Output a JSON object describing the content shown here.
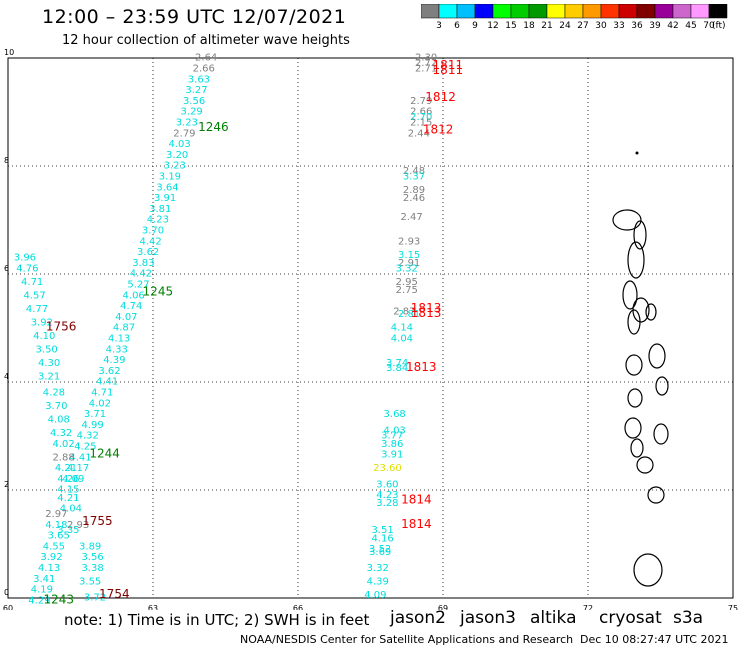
{
  "header": {
    "title": "12:00 – 23:59 UTC 12/07/2021",
    "subtitle": "12 hour collection of altimeter wave heights"
  },
  "colorbar": {
    "unit": "(ft)",
    "colors": [
      "#7f7f7f",
      "#00ffff",
      "#00bfff",
      "#0000ff",
      "#00ff00",
      "#00cc00",
      "#009900",
      "#ffff00",
      "#ffcc00",
      "#ff9900",
      "#ff3300",
      "#cc0000",
      "#800000",
      "#990099",
      "#cc66cc",
      "#ff99ff",
      "#000000"
    ],
    "ticks": [
      "3",
      "6",
      "9",
      "12",
      "15",
      "18",
      "21",
      "24",
      "27",
      "30",
      "33",
      "36",
      "39",
      "42",
      "45",
      "70"
    ]
  },
  "axes": {
    "x_ticks": [
      "60",
      "63",
      "66",
      "69",
      "72",
      "75"
    ],
    "y_ticks": [
      "0",
      "2",
      "4",
      "6",
      "8",
      "10"
    ],
    "lon_range": [
      60,
      75
    ],
    "lat_range": [
      0,
      10
    ]
  },
  "tracks": [
    {
      "name": "track-a",
      "color": "#00dddd",
      "labels": [
        {
          "text": "2.64",
          "lon": 64.1,
          "lat": 9.95,
          "c": "#808080"
        },
        {
          "text": "2.66",
          "lon": 64.05,
          "lat": 9.75,
          "c": "#808080"
        },
        {
          "text": "3.63",
          "lon": 63.95,
          "lat": 9.55
        },
        {
          "text": "3.27",
          "lon": 63.9,
          "lat": 9.35
        },
        {
          "text": "3.56",
          "lon": 63.85,
          "lat": 9.15
        },
        {
          "text": "3.29",
          "lon": 63.8,
          "lat": 8.95
        },
        {
          "text": "3.23",
          "lon": 63.7,
          "lat": 8.75
        },
        {
          "text": "2.79",
          "lon": 63.65,
          "lat": 8.55,
          "c": "#808080"
        },
        {
          "text": "4.03",
          "lon": 63.55,
          "lat": 8.35
        },
        {
          "text": "3.20",
          "lon": 63.5,
          "lat": 8.15
        },
        {
          "text": "3.23",
          "lon": 63.45,
          "lat": 7.95
        },
        {
          "text": "3.19",
          "lon": 63.35,
          "lat": 7.75
        },
        {
          "text": "3.64",
          "lon": 63.3,
          "lat": 7.55
        },
        {
          "text": "3.91",
          "lon": 63.25,
          "lat": 7.35
        },
        {
          "text": "3.81",
          "lon": 63.15,
          "lat": 7.15
        },
        {
          "text": "4.23",
          "lon": 63.1,
          "lat": 6.95
        },
        {
          "text": "3.70",
          "lon": 63.0,
          "lat": 6.75
        },
        {
          "text": "4.42",
          "lon": 62.95,
          "lat": 6.55
        },
        {
          "text": "3.62",
          "lon": 62.9,
          "lat": 6.35
        },
        {
          "text": "3.83",
          "lon": 62.8,
          "lat": 6.15
        },
        {
          "text": "4.42",
          "lon": 62.75,
          "lat": 5.95
        },
        {
          "text": "5.27",
          "lon": 62.7,
          "lat": 5.75
        },
        {
          "text": "4.06",
          "lon": 62.6,
          "lat": 5.55
        },
        {
          "text": "4.74",
          "lon": 62.55,
          "lat": 5.35
        },
        {
          "text": "4.07",
          "lon": 62.45,
          "lat": 5.15
        },
        {
          "text": "4.87",
          "lon": 62.4,
          "lat": 4.95
        },
        {
          "text": "4.13",
          "lon": 62.3,
          "lat": 4.75
        },
        {
          "text": "4.33",
          "lon": 62.25,
          "lat": 4.55
        },
        {
          "text": "4.39",
          "lon": 62.2,
          "lat": 4.35
        },
        {
          "text": "3.62",
          "lon": 62.1,
          "lat": 4.15
        },
        {
          "text": "4.41",
          "lon": 62.05,
          "lat": 3.95
        },
        {
          "text": "4.71",
          "lon": 61.95,
          "lat": 3.75
        },
        {
          "text": "4.02",
          "lon": 61.9,
          "lat": 3.55
        },
        {
          "text": "3.71",
          "lon": 61.8,
          "lat": 3.35
        },
        {
          "text": "4.99",
          "lon": 61.75,
          "lat": 3.15
        },
        {
          "text": "4.32",
          "lon": 61.65,
          "lat": 2.95
        },
        {
          "text": "4.25",
          "lon": 61.6,
          "lat": 2.75
        },
        {
          "text": "4.41",
          "lon": 61.5,
          "lat": 2.55
        },
        {
          "text": "4.17",
          "lon": 61.45,
          "lat": 2.35
        },
        {
          "text": "4.09",
          "lon": 61.35,
          "lat": 2.15
        },
        {
          "text": "4.04",
          "lon": 61.3,
          "lat": 1.6
        },
        {
          "text": "3.35",
          "lon": 61.25,
          "lat": 1.2
        }
      ]
    },
    {
      "name": "track-b",
      "color": "#00dddd",
      "labels": [
        {
          "text": "3.96",
          "lon": 60.35,
          "lat": 6.25
        },
        {
          "text": "4.76",
          "lon": 60.4,
          "lat": 6.05
        },
        {
          "text": "4.71",
          "lon": 60.5,
          "lat": 5.8
        },
        {
          "text": "4.57",
          "lon": 60.55,
          "lat": 5.55
        },
        {
          "text": "4.77",
          "lon": 60.6,
          "lat": 5.3
        },
        {
          "text": "3.92",
          "lon": 60.7,
          "lat": 5.05
        },
        {
          "text": "4.10",
          "lon": 60.75,
          "lat": 4.8
        },
        {
          "text": "3.50",
          "lon": 60.8,
          "lat": 4.55
        },
        {
          "text": "4.30",
          "lon": 60.85,
          "lat": 4.3
        },
        {
          "text": "3.21",
          "lon": 60.85,
          "lat": 4.05
        },
        {
          "text": "4.28",
          "lon": 60.95,
          "lat": 3.75
        },
        {
          "text": "3.70",
          "lon": 61.0,
          "lat": 3.5
        },
        {
          "text": "4.08",
          "lon": 61.05,
          "lat": 3.25
        },
        {
          "text": "4.32",
          "lon": 61.1,
          "lat": 3.0
        },
        {
          "text": "4.02",
          "lon": 61.15,
          "lat": 2.8
        },
        {
          "text": "2.88",
          "lon": 61.15,
          "lat": 2.55,
          "c": "#808080"
        },
        {
          "text": "4.21",
          "lon": 61.2,
          "lat": 2.35
        },
        {
          "text": "4.26",
          "lon": 61.25,
          "lat": 2.15
        },
        {
          "text": "4.15",
          "lon": 61.25,
          "lat": 1.95
        },
        {
          "text": "4.21",
          "lon": 61.25,
          "lat": 1.8
        },
        {
          "text": "2.97",
          "lon": 61.0,
          "lat": 1.5,
          "c": "#808080"
        },
        {
          "text": "4.18",
          "lon": 61.0,
          "lat": 1.3
        },
        {
          "text": "2.93",
          "lon": 61.45,
          "lat": 1.3,
          "c": "#808080"
        },
        {
          "text": "3.65",
          "lon": 61.05,
          "lat": 1.1
        },
        {
          "text": "4.55",
          "lon": 60.95,
          "lat": 0.9
        },
        {
          "text": "3.89",
          "lon": 61.7,
          "lat": 0.9
        },
        {
          "text": "3.92",
          "lon": 60.9,
          "lat": 0.7
        },
        {
          "text": "3.56",
          "lon": 61.75,
          "lat": 0.7
        },
        {
          "text": "4.13",
          "lon": 60.85,
          "lat": 0.5
        },
        {
          "text": "3.38",
          "lon": 61.75,
          "lat": 0.5
        },
        {
          "text": "3.41",
          "lon": 60.75,
          "lat": 0.3
        },
        {
          "text": "3.55",
          "lon": 61.7,
          "lat": 0.25
        },
        {
          "text": "4.19",
          "lon": 60.7,
          "lat": 0.1
        },
        {
          "text": "4.29",
          "lon": 60.65,
          "lat": -0.1
        },
        {
          "text": "3.72",
          "lon": 61.8,
          "lat": -0.05
        }
      ]
    },
    {
      "name": "track-c",
      "color": "#00dddd",
      "labels": [
        {
          "text": "2.30",
          "lon": 68.65,
          "lat": 9.95,
          "c": "#808080"
        },
        {
          "text": "2.72",
          "lon": 68.65,
          "lat": 9.85,
          "c": "#808080"
        },
        {
          "text": "2.71",
          "lon": 68.65,
          "lat": 9.75,
          "c": "#808080"
        },
        {
          "text": "2.79",
          "lon": 68.55,
          "lat": 9.15,
          "c": "#808080"
        },
        {
          "text": "2.66",
          "lon": 68.55,
          "lat": 8.95,
          "c": "#808080"
        },
        {
          "text": "2.70",
          "lon": 68.55,
          "lat": 8.85
        },
        {
          "text": "2.15",
          "lon": 68.55,
          "lat": 8.75,
          "c": "#808080"
        },
        {
          "text": "2.44",
          "lon": 68.5,
          "lat": 8.55,
          "c": "#808080"
        },
        {
          "text": "2.48",
          "lon": 68.4,
          "lat": 7.85,
          "c": "#808080"
        },
        {
          "text": "3.37",
          "lon": 68.4,
          "lat": 7.75
        },
        {
          "text": "2.89",
          "lon": 68.4,
          "lat": 7.5,
          "c": "#808080"
        },
        {
          "text": "2.46",
          "lon": 68.4,
          "lat": 7.35,
          "c": "#808080"
        },
        {
          "text": "2.47",
          "lon": 68.35,
          "lat": 7.0,
          "c": "#808080"
        },
        {
          "text": "2.93",
          "lon": 68.3,
          "lat": 6.55,
          "c": "#808080"
        },
        {
          "text": "3.15",
          "lon": 68.3,
          "lat": 6.3
        },
        {
          "text": "2.91",
          "lon": 68.3,
          "lat": 6.15,
          "c": "#808080"
        },
        {
          "text": "3.32",
          "lon": 68.25,
          "lat": 6.05
        },
        {
          "text": "2.95",
          "lon": 68.25,
          "lat": 5.8,
          "c": "#808080"
        },
        {
          "text": "2.75",
          "lon": 68.25,
          "lat": 5.65,
          "c": "#808080"
        },
        {
          "text": "2.87",
          "lon": 68.2,
          "lat": 5.25,
          "c": "#808080"
        },
        {
          "text": "2.81",
          "lon": 68.3,
          "lat": 5.2
        },
        {
          "text": "4.14",
          "lon": 68.15,
          "lat": 4.95
        },
        {
          "text": "4.04",
          "lon": 68.15,
          "lat": 4.75
        },
        {
          "text": "3.74",
          "lon": 68.05,
          "lat": 4.3
        },
        {
          "text": "3.84",
          "lon": 68.05,
          "lat": 4.2
        },
        {
          "text": "3.68",
          "lon": 68.0,
          "lat": 3.35
        },
        {
          "text": "4.03",
          "lon": 68.0,
          "lat": 3.05
        },
        {
          "text": "3.77",
          "lon": 67.95,
          "lat": 2.95
        },
        {
          "text": "3.86",
          "lon": 67.95,
          "lat": 2.8
        },
        {
          "text": "3.91",
          "lon": 67.95,
          "lat": 2.6
        },
        {
          "text": "23.60",
          "lon": 67.85,
          "lat": 2.35,
          "c": "#e0e000"
        },
        {
          "text": "3.60",
          "lon": 67.85,
          "lat": 2.05
        },
        {
          "text": "4.23",
          "lon": 67.85,
          "lat": 1.85
        },
        {
          "text": "3.28",
          "lon": 67.85,
          "lat": 1.7
        },
        {
          "text": "3.51",
          "lon": 67.75,
          "lat": 1.2
        },
        {
          "text": "4.16",
          "lon": 67.75,
          "lat": 1.05
        },
        {
          "text": "3.52",
          "lon": 67.7,
          "lat": 0.85
        },
        {
          "text": "3.69",
          "lon": 67.7,
          "lat": 0.8
        },
        {
          "text": "3.32",
          "lon": 67.65,
          "lat": 0.5
        },
        {
          "text": "4.39",
          "lon": 67.65,
          "lat": 0.25
        },
        {
          "text": "4.09",
          "lon": 67.6,
          "lat": 0.0
        }
      ]
    }
  ],
  "time_labels": [
    {
      "text": "1246",
      "lon": 64.25,
      "lat": 8.65,
      "c": "#008000"
    },
    {
      "text": "1245",
      "lon": 63.1,
      "lat": 5.6,
      "c": "#008000"
    },
    {
      "text": "1244",
      "lon": 62.0,
      "lat": 2.6,
      "c": "#008000"
    },
    {
      "text": "1243",
      "lon": 61.05,
      "lat": -0.1,
      "c": "#008000"
    },
    {
      "text": "1756",
      "lon": 61.1,
      "lat": 4.95,
      "c": "#800000"
    },
    {
      "text": "1755",
      "lon": 61.85,
      "lat": 1.35,
      "c": "#800000"
    },
    {
      "text": "1754",
      "lon": 62.2,
      "lat": 0.0,
      "c": "#800000"
    },
    {
      "text": "1811",
      "lon": 69.1,
      "lat": 9.8,
      "c": "#ff0000"
    },
    {
      "text": "1811",
      "lon": 69.1,
      "lat": 9.7,
      "c": "#ff0000"
    },
    {
      "text": "1812",
      "lon": 68.95,
      "lat": 9.2,
      "c": "#ff0000"
    },
    {
      "text": "1812",
      "lon": 68.9,
      "lat": 8.6,
      "c": "#ff0000"
    },
    {
      "text": "1813",
      "lon": 68.65,
      "lat": 5.3,
      "c": "#ff0000"
    },
    {
      "text": "1813",
      "lon": 68.65,
      "lat": 5.2,
      "c": "#ff0000"
    },
    {
      "text": "1813",
      "lon": 68.55,
      "lat": 4.2,
      "c": "#ff0000"
    },
    {
      "text": "1814",
      "lon": 68.45,
      "lat": 1.75,
      "c": "#ff0000"
    },
    {
      "text": "1814",
      "lon": 68.45,
      "lat": 1.3,
      "c": "#ff0000"
    }
  ],
  "footer": {
    "note": "note:  1) Time is in UTC;  2) SWH is in feet",
    "satellites": [
      {
        "name": "jason2",
        "color": "#0000ff"
      },
      {
        "name": "jason3",
        "color": "#008000"
      },
      {
        "name": "altika",
        "color": "#ff9900"
      },
      {
        "name": "cryosat",
        "color": "#cc0000"
      },
      {
        "name": "s3a",
        "color": "#800000"
      }
    ],
    "credit": "NOAA/NESDIS Center for Satellite Applications and Research",
    "timestamp": "Dec 10 08:27:47 UTC 2021"
  }
}
